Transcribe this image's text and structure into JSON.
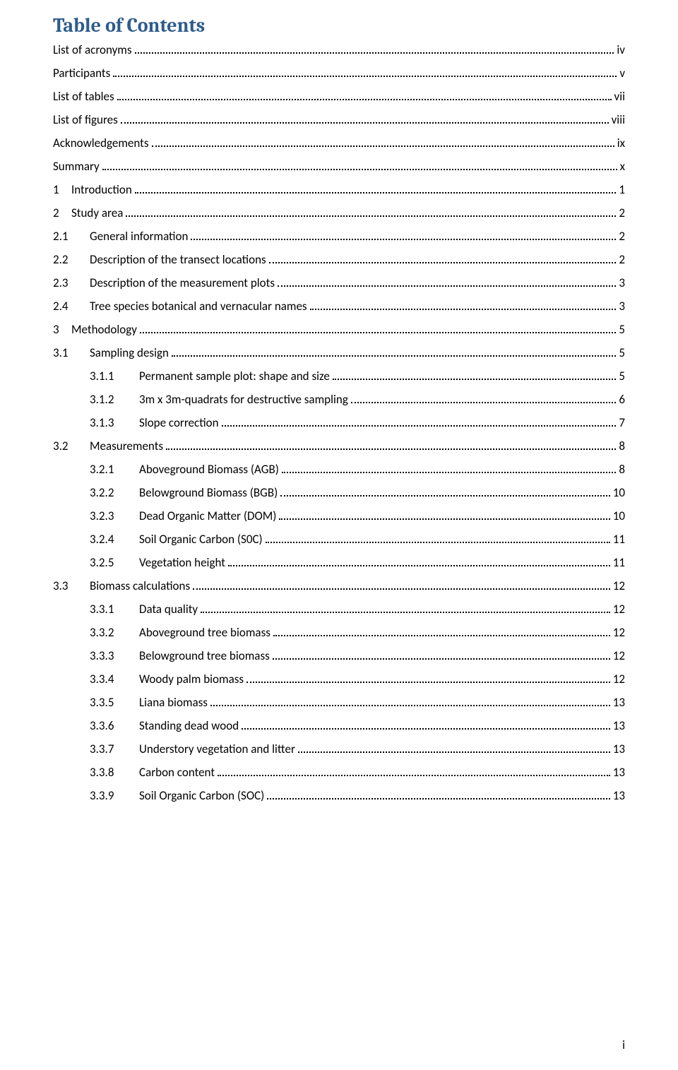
{
  "title": "Table of Contents",
  "footer_page": "i",
  "entries": [
    {
      "level": 0,
      "num": "",
      "label": "List of acronyms",
      "page": "iv"
    },
    {
      "level": 0,
      "num": "",
      "label": "Participants",
      "page": "v"
    },
    {
      "level": 0,
      "num": "",
      "label": "List of tables",
      "page": "vii"
    },
    {
      "level": 0,
      "num": "",
      "label": "List of figures",
      "page": "viii"
    },
    {
      "level": 0,
      "num": "",
      "label": "Acknowledgements",
      "page": "ix"
    },
    {
      "level": 0,
      "num": "",
      "label": "Summary",
      "page": "x"
    },
    {
      "level": 1,
      "num": "1",
      "label": "Introduction",
      "page": "1"
    },
    {
      "level": 1,
      "num": "2",
      "label": "Study area",
      "page": "2"
    },
    {
      "level": 2,
      "num": "2.1",
      "label": "General information",
      "page": "2"
    },
    {
      "level": 2,
      "num": "2.2",
      "label": "Description of the transect locations",
      "page": "2"
    },
    {
      "level": 2,
      "num": "2.3",
      "label": "Description of the measurement plots",
      "page": "3"
    },
    {
      "level": 2,
      "num": "2.4",
      "label": "Tree species botanical and vernacular names",
      "page": "3"
    },
    {
      "level": 1,
      "num": "3",
      "label": "Methodology",
      "page": "5"
    },
    {
      "level": 2,
      "num": "3.1",
      "label": "Sampling design",
      "page": "5"
    },
    {
      "level": 3,
      "num": "3.1.1",
      "label": "Permanent sample plot: shape and size",
      "page": "5"
    },
    {
      "level": 3,
      "num": "3.1.2",
      "label": "3m x 3m-quadrats for destructive sampling",
      "page": "6"
    },
    {
      "level": 3,
      "num": "3.1.3",
      "label": "Slope correction",
      "page": "7"
    },
    {
      "level": 2,
      "num": "3.2",
      "label": "Measurements",
      "page": "8"
    },
    {
      "level": 3,
      "num": "3.2.1",
      "label": "Aboveground Biomass (AGB)",
      "page": "8"
    },
    {
      "level": 3,
      "num": "3.2.2",
      "label": "Belowground Biomass (BGB)",
      "page": "10"
    },
    {
      "level": 3,
      "num": "3.2.3",
      "label": "Dead Organic Matter (DOM)",
      "page": "10"
    },
    {
      "level": 3,
      "num": "3.2.4",
      "label": "Soil Organic Carbon (S0C)",
      "page": "11"
    },
    {
      "level": 3,
      "num": "3.2.5",
      "label": "Vegetation height",
      "page": "11"
    },
    {
      "level": 2,
      "num": "3.3",
      "label": "Biomass calculations",
      "page": "12"
    },
    {
      "level": 3,
      "num": "3.3.1",
      "label": "Data quality",
      "page": "12"
    },
    {
      "level": 3,
      "num": "3.3.2",
      "label": "Aboveground tree biomass",
      "page": "12"
    },
    {
      "level": 3,
      "num": "3.3.3",
      "label": "Belowground tree biomass",
      "page": "12"
    },
    {
      "level": 3,
      "num": "3.3.4",
      "label": "Woody palm biomass",
      "page": "12"
    },
    {
      "level": 3,
      "num": "3.3.5",
      "label": "Liana biomass",
      "page": "13"
    },
    {
      "level": 3,
      "num": "3.3.6",
      "label": "Standing dead wood",
      "page": "13"
    },
    {
      "level": 3,
      "num": "3.3.7",
      "label": "Understory vegetation and litter",
      "page": "13"
    },
    {
      "level": 3,
      "num": "3.3.8",
      "label": "Carbon content",
      "page": "13"
    },
    {
      "level": 3,
      "num": "3.3.9",
      "label": "Soil Organic Carbon (SOC)",
      "page": "13"
    }
  ]
}
